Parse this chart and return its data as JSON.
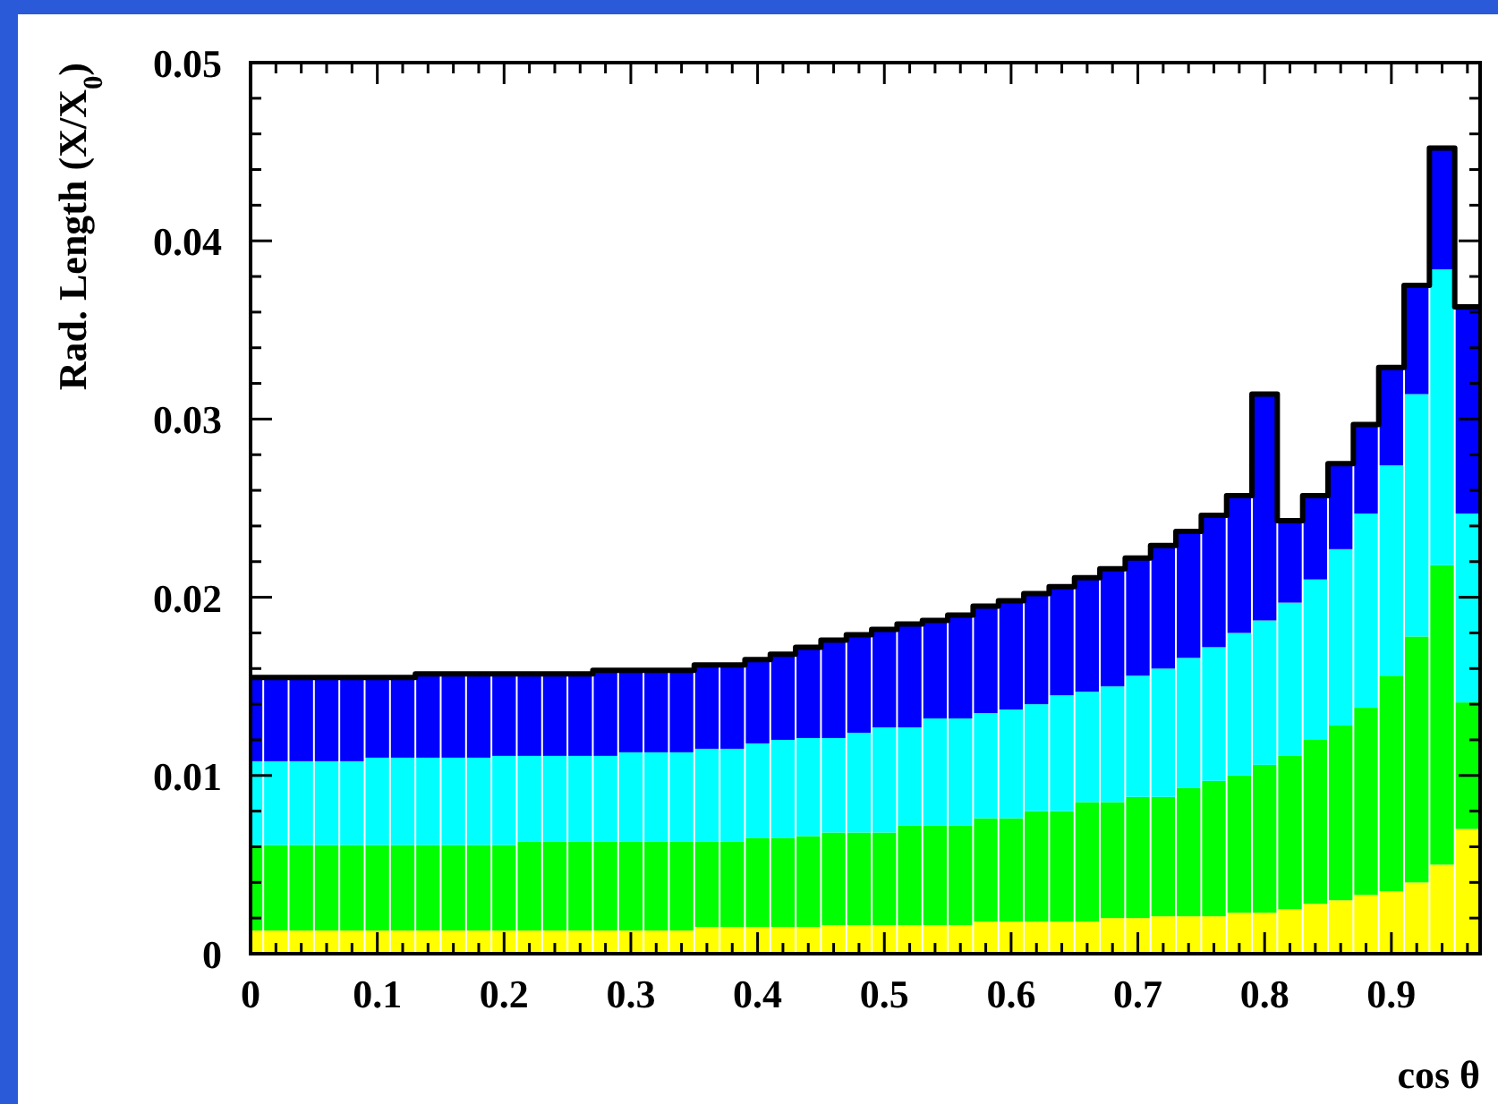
{
  "chart_data": {
    "type": "bar",
    "stacked": true,
    "xlabel": "cos θ",
    "ylabel": "Rad. Length (X/X$_{0}$)",
    "x": [
      0,
      0.02,
      0.04,
      0.06,
      0.08,
      0.1,
      0.12,
      0.14,
      0.16,
      0.18,
      0.2,
      0.22,
      0.24,
      0.26,
      0.28,
      0.3,
      0.32,
      0.34,
      0.36,
      0.38,
      0.4,
      0.42,
      0.44,
      0.46,
      0.48,
      0.5,
      0.52,
      0.54,
      0.56,
      0.58,
      0.6,
      0.62,
      0.64,
      0.66,
      0.68,
      0.7,
      0.72,
      0.74,
      0.76,
      0.78,
      0.8,
      0.82,
      0.84,
      0.86,
      0.88,
      0.9,
      0.92,
      0.94,
      0.96
    ],
    "series": [
      {
        "color": "#ffff00",
        "values": [
          0.0013,
          0.0013,
          0.0013,
          0.0013,
          0.0013,
          0.0013,
          0.0013,
          0.0013,
          0.0013,
          0.0013,
          0.0013,
          0.0013,
          0.0013,
          0.0013,
          0.0013,
          0.0013,
          0.0013,
          0.0013,
          0.0015,
          0.0015,
          0.0015,
          0.0015,
          0.0015,
          0.0016,
          0.0016,
          0.0016,
          0.0016,
          0.0016,
          0.0016,
          0.0018,
          0.0018,
          0.0018,
          0.0018,
          0.0018,
          0.002,
          0.002,
          0.0021,
          0.0021,
          0.0021,
          0.0023,
          0.0023,
          0.0025,
          0.0028,
          0.003,
          0.0033,
          0.0035,
          0.004,
          0.005,
          0.007
        ]
      },
      {
        "color": "#00ff00",
        "values": [
          0.0048,
          0.0048,
          0.0048,
          0.0048,
          0.0048,
          0.0048,
          0.0048,
          0.0048,
          0.0048,
          0.0048,
          0.0048,
          0.005,
          0.005,
          0.005,
          0.005,
          0.005,
          0.005,
          0.005,
          0.0048,
          0.0048,
          0.005,
          0.005,
          0.0051,
          0.0052,
          0.0052,
          0.0052,
          0.0056,
          0.0056,
          0.0056,
          0.0058,
          0.0058,
          0.0062,
          0.0062,
          0.0067,
          0.0065,
          0.0068,
          0.0067,
          0.0072,
          0.0076,
          0.0077,
          0.0083,
          0.0086,
          0.0092,
          0.0098,
          0.0105,
          0.0121,
          0.0138,
          0.0168,
          0.0071
        ]
      },
      {
        "color": "#00ffff",
        "values": [
          0.0047,
          0.0047,
          0.0047,
          0.0047,
          0.0047,
          0.0049,
          0.0049,
          0.0049,
          0.0049,
          0.0049,
          0.005,
          0.0048,
          0.0048,
          0.0048,
          0.0048,
          0.005,
          0.005,
          0.005,
          0.0052,
          0.0052,
          0.0053,
          0.0055,
          0.0055,
          0.0053,
          0.0056,
          0.0059,
          0.0055,
          0.006,
          0.006,
          0.0059,
          0.0061,
          0.006,
          0.0065,
          0.0062,
          0.0065,
          0.0068,
          0.0072,
          0.0073,
          0.0075,
          0.008,
          0.0081,
          0.0086,
          0.009,
          0.0099,
          0.0109,
          0.0118,
          0.0136,
          0.0166,
          0.0106
        ]
      },
      {
        "color": "#0000ff",
        "values": [
          0.0047,
          0.0047,
          0.0047,
          0.0047,
          0.0047,
          0.0045,
          0.0045,
          0.0047,
          0.0047,
          0.0047,
          0.0046,
          0.0046,
          0.0046,
          0.0046,
          0.0048,
          0.0046,
          0.0046,
          0.0046,
          0.0047,
          0.0047,
          0.0047,
          0.0048,
          0.0051,
          0.0055,
          0.0055,
          0.0055,
          0.0058,
          0.0055,
          0.0058,
          0.006,
          0.0061,
          0.0062,
          0.0061,
          0.0064,
          0.0066,
          0.0066,
          0.0069,
          0.0071,
          0.0074,
          0.0077,
          0.0127,
          0.0046,
          0.0047,
          0.0048,
          0.005,
          0.0055,
          0.0061,
          0.0068,
          0.0116
        ]
      },
      {
        "type": "step",
        "color": "#000000",
        "x": [
          0,
          0.01,
          0.03,
          0.05,
          0.07,
          0.09,
          0.11,
          0.13,
          0.15,
          0.17,
          0.19,
          0.21,
          0.23,
          0.25,
          0.27,
          0.29,
          0.31,
          0.33,
          0.35,
          0.37,
          0.39,
          0.41,
          0.43,
          0.45,
          0.47,
          0.49,
          0.51,
          0.53,
          0.55,
          0.57,
          0.59,
          0.61,
          0.63,
          0.65,
          0.67,
          0.69,
          0.71,
          0.73,
          0.75,
          0.77,
          0.79,
          0.81,
          0.83,
          0.85,
          0.87,
          0.89,
          0.91,
          0.93,
          0.95,
          0.97
        ],
        "values": [
          0.0155,
          0.0155,
          0.0155,
          0.0155,
          0.0155,
          0.0155,
          0.0155,
          0.0157,
          0.0157,
          0.0157,
          0.0157,
          0.0157,
          0.0157,
          0.0157,
          0.0159,
          0.0159,
          0.0159,
          0.0159,
          0.0162,
          0.0162,
          0.0165,
          0.0168,
          0.0172,
          0.0176,
          0.0179,
          0.0182,
          0.0185,
          0.0187,
          0.019,
          0.0195,
          0.0198,
          0.0202,
          0.0206,
          0.0211,
          0.0216,
          0.0222,
          0.0229,
          0.0237,
          0.0246,
          0.0257,
          0.0314,
          0.0243,
          0.0257,
          0.0275,
          0.0297,
          0.0329,
          0.0375,
          0.0452,
          0.0363,
          0.0363
        ]
      }
    ],
    "xlim": [
      0,
      0.97
    ],
    "xticks": [
      0,
      {
        "value": 0.02,
        "label": null
      },
      {
        "value": 0.04,
        "label": null
      },
      {
        "value": 0.06,
        "label": null
      },
      {
        "value": 0.08,
        "label": null
      },
      0.1,
      {
        "value": 0.12,
        "label": null
      },
      {
        "value": 0.14,
        "label": null
      },
      {
        "value": 0.16,
        "label": null
      },
      {
        "value": 0.18,
        "label": null
      },
      0.2,
      {
        "value": 0.22,
        "label": null
      },
      {
        "value": 0.24,
        "label": null
      },
      {
        "value": 0.26,
        "label": null
      },
      {
        "value": 0.28,
        "label": null
      },
      0.3,
      {
        "value": 0.32,
        "label": null
      },
      {
        "value": 0.34,
        "label": null
      },
      {
        "value": 0.36,
        "label": null
      },
      {
        "value": 0.38,
        "label": null
      },
      0.4,
      {
        "value": 0.42,
        "label": null
      },
      {
        "value": 0.44,
        "label": null
      },
      {
        "value": 0.46,
        "label": null
      },
      {
        "value": 0.48,
        "label": null
      },
      0.5,
      {
        "value": 0.52,
        "label": null
      },
      {
        "value": 0.54,
        "label": null
      },
      {
        "value": 0.56,
        "label": null
      },
      {
        "value": 0.58,
        "label": null
      },
      0.6,
      {
        "value": 0.62,
        "label": null
      },
      {
        "value": 0.64,
        "label": null
      },
      {
        "value": 0.66,
        "label": null
      },
      {
        "value": 0.68,
        "label": null
      },
      0.7,
      {
        "value": 0.72,
        "label": null
      },
      {
        "value": 0.74,
        "label": null
      },
      {
        "value": 0.76,
        "label": null
      },
      {
        "value": 0.78,
        "label": null
      },
      0.8,
      {
        "value": 0.82,
        "label": null
      },
      {
        "value": 0.84,
        "label": null
      },
      {
        "value": 0.86,
        "label": null
      },
      {
        "value": 0.88,
        "label": null
      },
      0.9,
      {
        "value": 0.92,
        "label": null
      },
      {
        "value": 0.94,
        "label": null
      },
      {
        "value": 0.96,
        "label": null
      }
    ],
    "ylim": [
      0,
      0.05
    ],
    "yticks": [
      0,
      {
        "value": 0.002,
        "label": null
      },
      {
        "value": 0.004,
        "label": null
      },
      {
        "value": 0.006,
        "label": null
      },
      {
        "value": 0.008,
        "label": null
      },
      0.01,
      {
        "value": 0.012,
        "label": null
      },
      {
        "value": 0.014,
        "label": null
      },
      {
        "value": 0.016,
        "label": null
      },
      {
        "value": 0.018,
        "label": null
      },
      0.02,
      {
        "value": 0.022,
        "label": null
      },
      {
        "value": 0.024,
        "label": null
      },
      {
        "value": 0.026,
        "label": null
      },
      {
        "value": 0.028,
        "label": null
      },
      0.03,
      {
        "value": 0.032,
        "label": null
      },
      {
        "value": 0.034,
        "label": null
      },
      {
        "value": 0.036,
        "label": null
      },
      {
        "value": 0.038,
        "label": null
      },
      0.04,
      {
        "value": 0.042,
        "label": null
      },
      {
        "value": 0.044,
        "label": null
      },
      {
        "value": 0.046,
        "label": null
      },
      {
        "value": 0.048,
        "label": null
      },
      0.05
    ]
  }
}
